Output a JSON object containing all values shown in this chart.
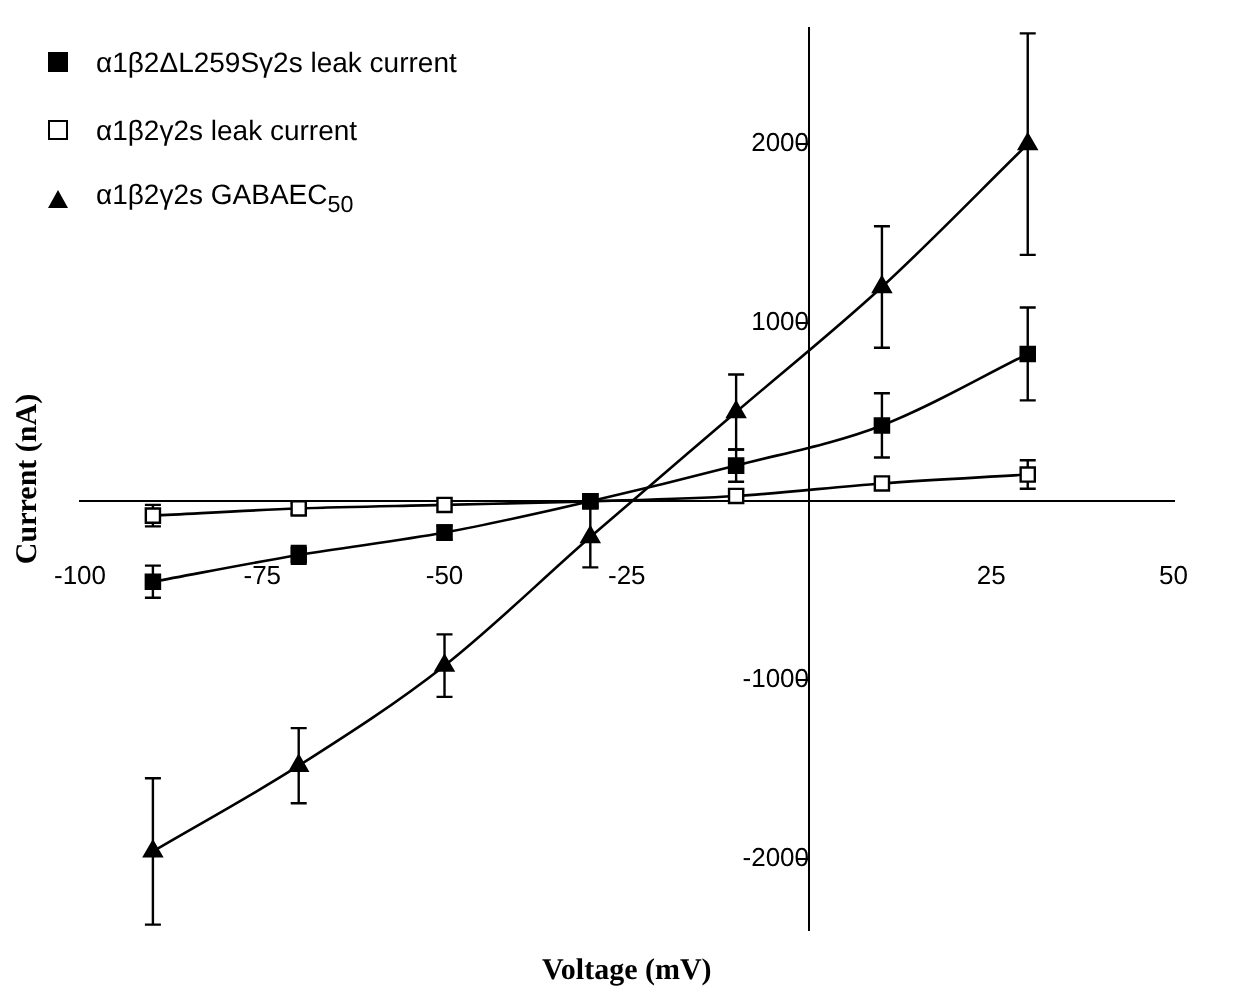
{
  "chart_data": {
    "type": "line",
    "xlabel": "Voltage (mV)",
    "ylabel": "Current (nA)",
    "x": [
      -90,
      -70,
      -50,
      -30,
      -10,
      10,
      30
    ],
    "series": [
      {
        "name": "α1β2ΔL259Sγ2s leak current",
        "color": "#000000",
        "marker": "square",
        "values": [
          -450,
          -300,
          -175,
          0,
          200,
          425,
          825
        ],
        "errors": [
          90,
          50,
          40,
          null,
          90,
          180,
          260
        ]
      },
      {
        "name": "α1β2γ2s leak current",
        "color": "#000000",
        "marker": "square-open",
        "values": [
          -80,
          -40,
          -20,
          0,
          30,
          100,
          150
        ],
        "errors": [
          60,
          30,
          null,
          null,
          null,
          30,
          80
        ]
      },
      {
        "name": "α1β2γ2s GABAEC$_{50}$",
        "color": "#000000",
        "marker": "triangle",
        "values": [
          -1960,
          -1480,
          -920,
          -200,
          500,
          1200,
          2000
        ],
        "errors": [
          410,
          210,
          175,
          170,
          210,
          340,
          620
        ]
      }
    ],
    "xlim": [
      -100,
      50
    ],
    "xticks": [
      -100,
      -75,
      -50,
      -25,
      25,
      50
    ],
    "ylim": [
      -2400,
      2650
    ],
    "yticks": [
      -2000,
      -1000,
      1000,
      2000
    ],
    "grid": false,
    "legend": "top left",
    "line_style": "solid"
  }
}
